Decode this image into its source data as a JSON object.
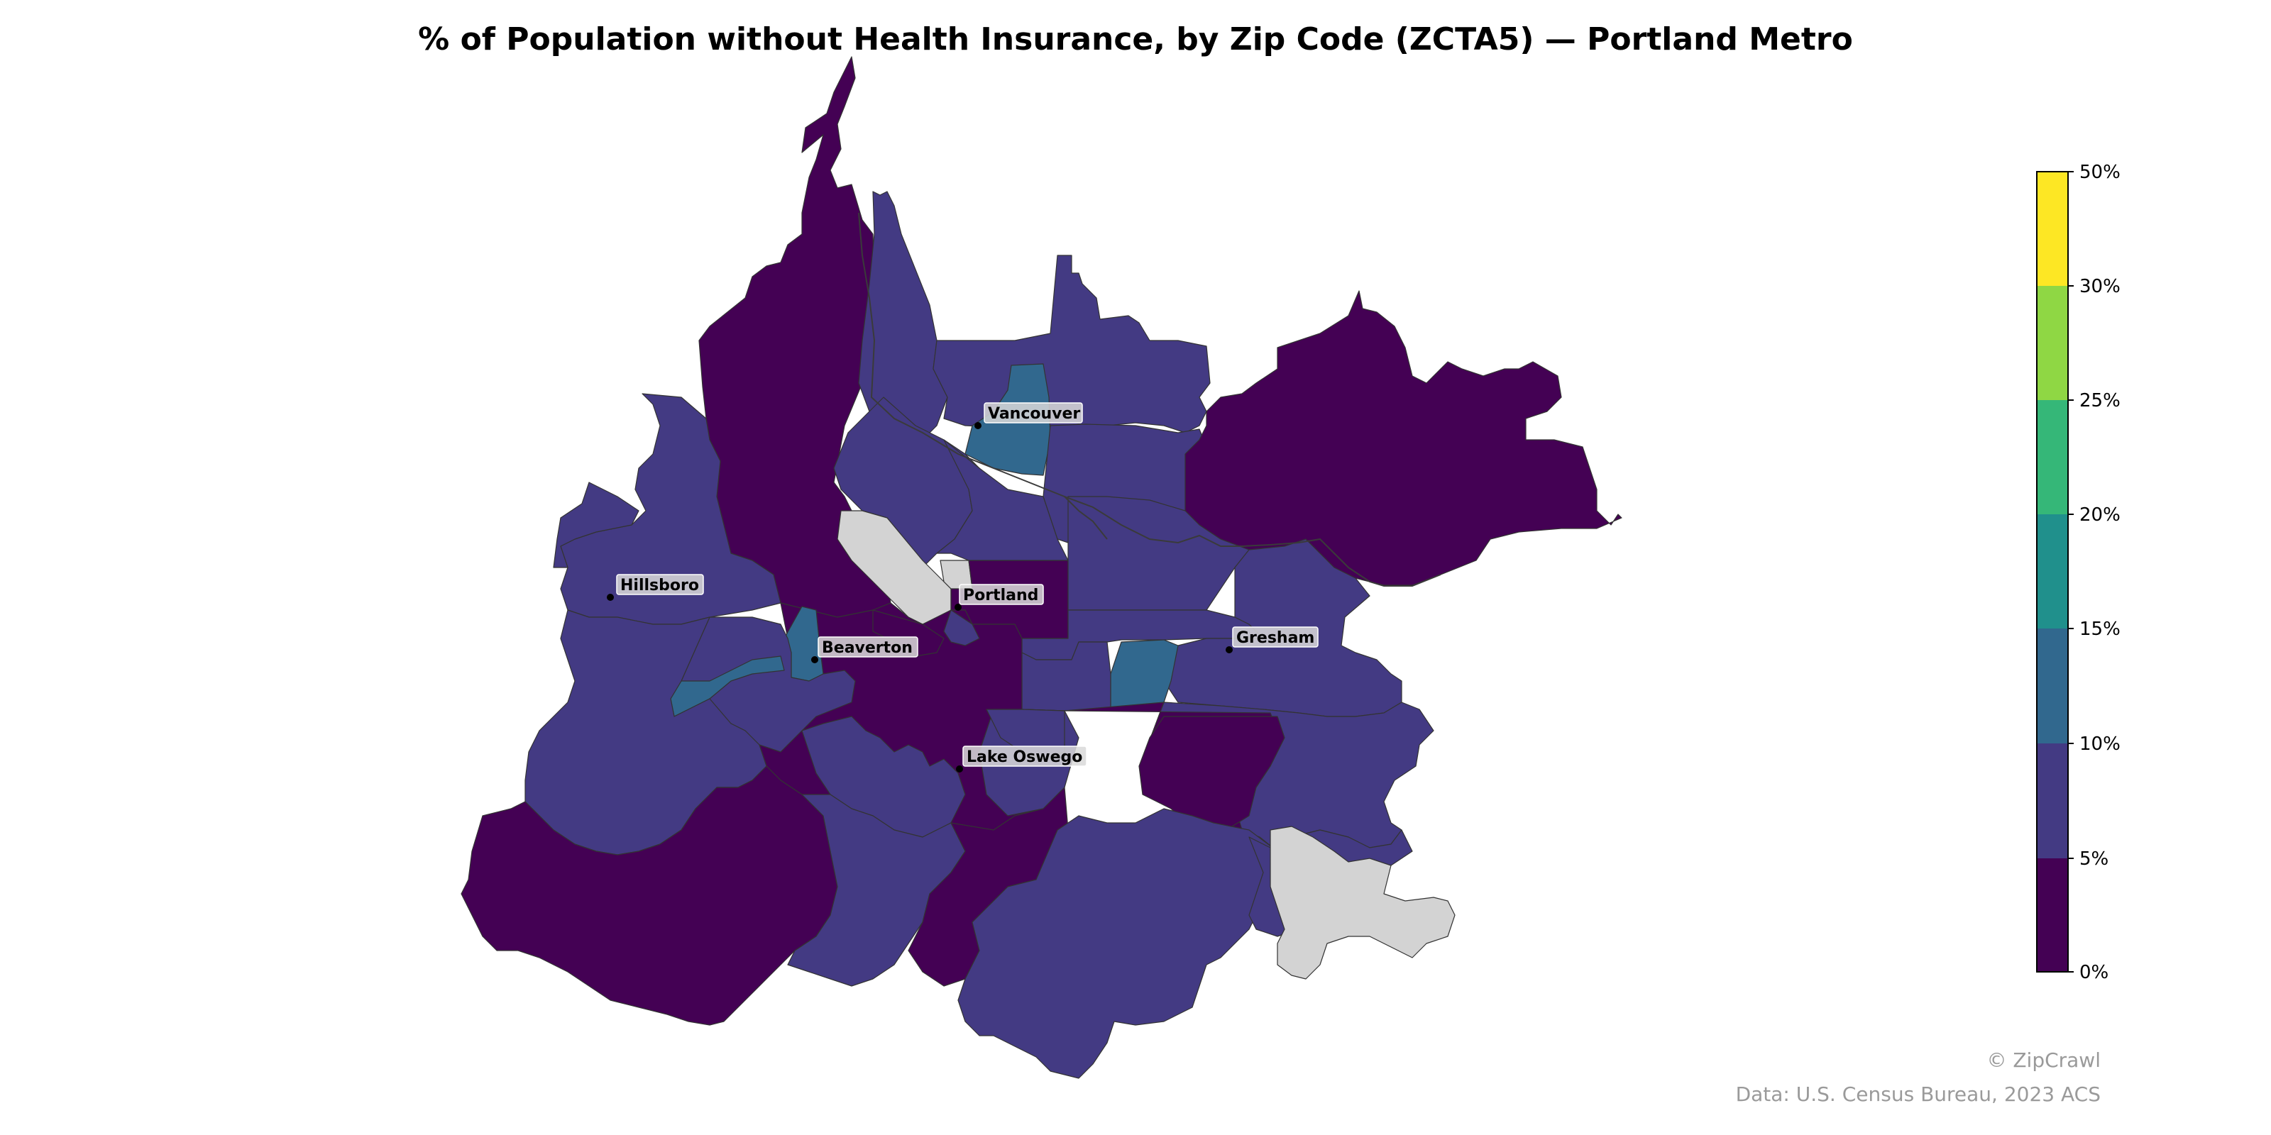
{
  "title": "% of Population without Health Insurance, by Zip Code (ZCTA5) — Portland Metro",
  "colors": {
    "bin_0_5": "#440154",
    "bin_5_10": "#433a83",
    "bin_10_15": "#31688e",
    "bin_15_20": "#20908c",
    "bin_20_25": "#35b778",
    "bin_25_30": "#8fd744",
    "bin_30_50": "#fde724",
    "no_data": "#d3d3d3",
    "boundary": "#333333"
  },
  "colorbar": {
    "ticks": [
      "0%",
      "5%",
      "10%",
      "15%",
      "20%",
      "25%",
      "30%",
      "50%"
    ]
  },
  "cities": [
    {
      "name": "Vancouver"
    },
    {
      "name": "Hillsboro"
    },
    {
      "name": "Portland"
    },
    {
      "name": "Beaverton"
    },
    {
      "name": "Gresham"
    },
    {
      "name": "Lake Oswego"
    }
  ],
  "credits": {
    "line1": "© ZipCrawl",
    "line2": "Data: U.S. Census Bureau, 2023 ACS"
  }
}
